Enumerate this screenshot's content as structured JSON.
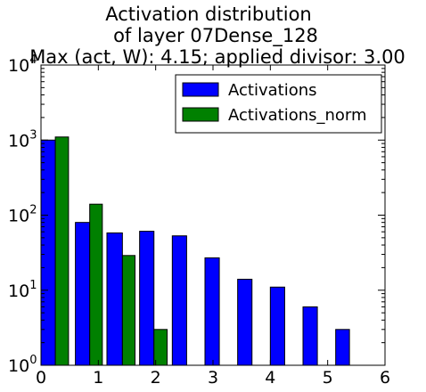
{
  "chart_data": {
    "type": "bar",
    "title_lines": [
      "Activation distribution",
      "of layer 07Dense_128",
      "Max (act, W): 4.15; applied divisor: 3.00"
    ],
    "xlabel": "",
    "ylabel": "",
    "xlim": [
      0,
      6
    ],
    "ylim": [
      1,
      10000
    ],
    "yscale": "log",
    "x_ticks": [
      "0",
      "1",
      "2",
      "3",
      "4",
      "5",
      "6"
    ],
    "y_ticks": [
      {
        "base": "10",
        "exp": "0"
      },
      {
        "base": "10",
        "exp": "1"
      },
      {
        "base": "10",
        "exp": "2"
      },
      {
        "base": "10",
        "exp": "3"
      },
      {
        "base": "10",
        "exp": "4"
      }
    ],
    "legend_position": "top-right",
    "grid": false,
    "series": [
      {
        "name": "Activations",
        "color": "#0000ff",
        "bins": [
          {
            "x0": 0.0,
            "x1": 0.25,
            "value": 1000
          },
          {
            "x0": 0.6,
            "x1": 0.85,
            "value": 80
          },
          {
            "x0": 1.15,
            "x1": 1.42,
            "value": 58
          },
          {
            "x0": 1.72,
            "x1": 1.97,
            "value": 61
          },
          {
            "x0": 2.29,
            "x1": 2.54,
            "value": 53
          },
          {
            "x0": 2.86,
            "x1": 3.11,
            "value": 27
          },
          {
            "x0": 3.43,
            "x1": 3.68,
            "value": 14
          },
          {
            "x0": 4.0,
            "x1": 4.25,
            "value": 11
          },
          {
            "x0": 4.57,
            "x1": 4.82,
            "value": 6
          },
          {
            "x0": 5.14,
            "x1": 5.38,
            "value": 3
          }
        ]
      },
      {
        "name": "Activations_norm",
        "color": "#008000",
        "bins": [
          {
            "x0": 0.25,
            "x1": 0.48,
            "value": 1100
          },
          {
            "x0": 0.85,
            "x1": 1.07,
            "value": 140
          },
          {
            "x0": 1.42,
            "x1": 1.64,
            "value": 29
          },
          {
            "x0": 1.97,
            "x1": 2.2,
            "value": 3
          }
        ]
      }
    ]
  }
}
